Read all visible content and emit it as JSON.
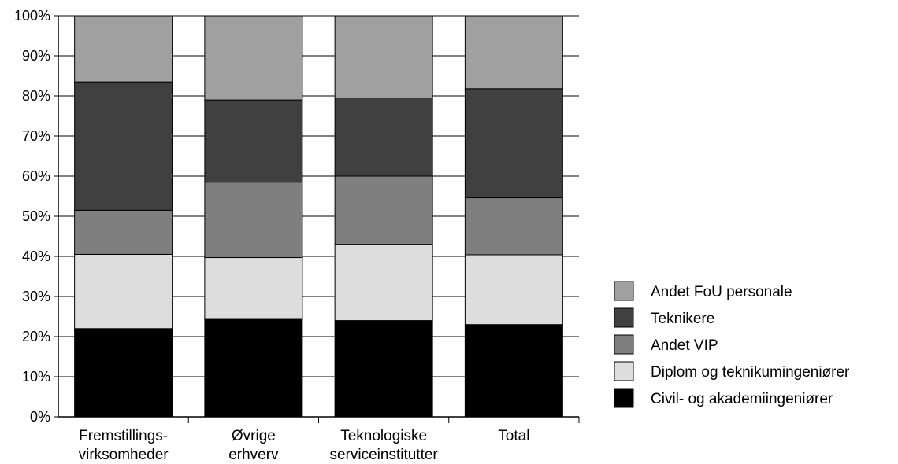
{
  "chart_data": {
    "type": "bar",
    "stacked": true,
    "percent": true,
    "categories": [
      [
        "Fremstillings-",
        "virksomheder"
      ],
      [
        "Øvrige",
        "erhverv"
      ],
      [
        "Teknologiske",
        "serviceinstitutter"
      ],
      [
        "Total"
      ]
    ],
    "series": [
      {
        "name": "Civil- og akademiingeniører",
        "color": "#000000",
        "values": [
          22,
          24.5,
          24,
          23
        ]
      },
      {
        "name": "Diplom og teknikumingeniører",
        "color": "#dddddd",
        "values": [
          18.5,
          15.2,
          19,
          17.4
        ]
      },
      {
        "name": "Andet VIP",
        "color": "#7f7f7f",
        "values": [
          11,
          18.8,
          17,
          14.2
        ]
      },
      {
        "name": "Teknikere",
        "color": "#404040",
        "values": [
          32,
          20.5,
          19.5,
          27.2
        ]
      },
      {
        "name": "Andet FoU personale",
        "color": "#a0a0a0",
        "values": [
          16.5,
          21,
          20.5,
          18.2
        ]
      }
    ],
    "y_ticks": [
      "0%",
      "10%",
      "20%",
      "30%",
      "40%",
      "50%",
      "60%",
      "70%",
      "80%",
      "90%",
      "100%"
    ],
    "ylim": [
      0,
      100
    ],
    "legend_position": "right",
    "legend_order": [
      "Andet FoU personale",
      "Teknikere",
      "Andet VIP",
      "Diplom og teknikumingeniører",
      "Civil- og akademiingeniører"
    ]
  }
}
